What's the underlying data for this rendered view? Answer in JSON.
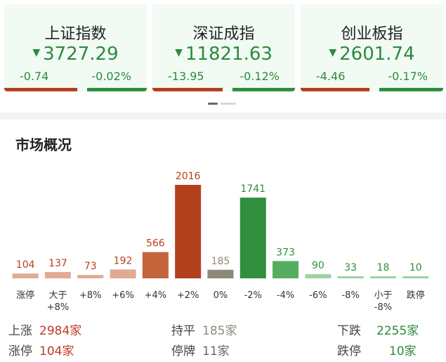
{
  "indices": [
    {
      "name": "上证指数",
      "price": "3727.29",
      "change": "-0.74",
      "pct": "-0.02%",
      "up_ratio": 0.55
    },
    {
      "name": "深证成指",
      "price": "11821.63",
      "change": "-13.95",
      "pct": "-0.12%",
      "up_ratio": 0.53
    },
    {
      "name": "创业板指",
      "price": "2601.74",
      "change": "-4.46",
      "pct": "-0.17%",
      "up_ratio": 0.52
    }
  ],
  "colors": {
    "up": "#b3401d",
    "down": "#2f8f3f",
    "flat": "#8f8a78"
  },
  "market": {
    "title": "市场概况",
    "stats": {
      "rise_label": "上涨",
      "rise_value": "2984家",
      "flat_label": "持平",
      "flat_value": "185家",
      "fall_label": "下跌",
      "fall_value": "2255家",
      "limit_up_label": "涨停",
      "limit_up_value": "104家",
      "suspend_label": "停牌",
      "suspend_value": "11家",
      "limit_down_label": "跌停",
      "limit_down_value": "10家"
    }
  },
  "chart_data": {
    "type": "bar",
    "categories": [
      "涨停",
      "大于\n+8%",
      "+8%",
      "+6%",
      "+4%",
      "+2%",
      "0%",
      "-2%",
      "-4%",
      "-6%",
      "-8%",
      "小于\n-8%",
      "跌停"
    ],
    "values": [
      104,
      137,
      73,
      192,
      566,
      2016,
      185,
      1741,
      373,
      90,
      33,
      18,
      10
    ],
    "direction": [
      "up",
      "up",
      "up",
      "up",
      "up",
      "up",
      "flat",
      "down",
      "down",
      "down",
      "down",
      "down",
      "down"
    ]
  }
}
